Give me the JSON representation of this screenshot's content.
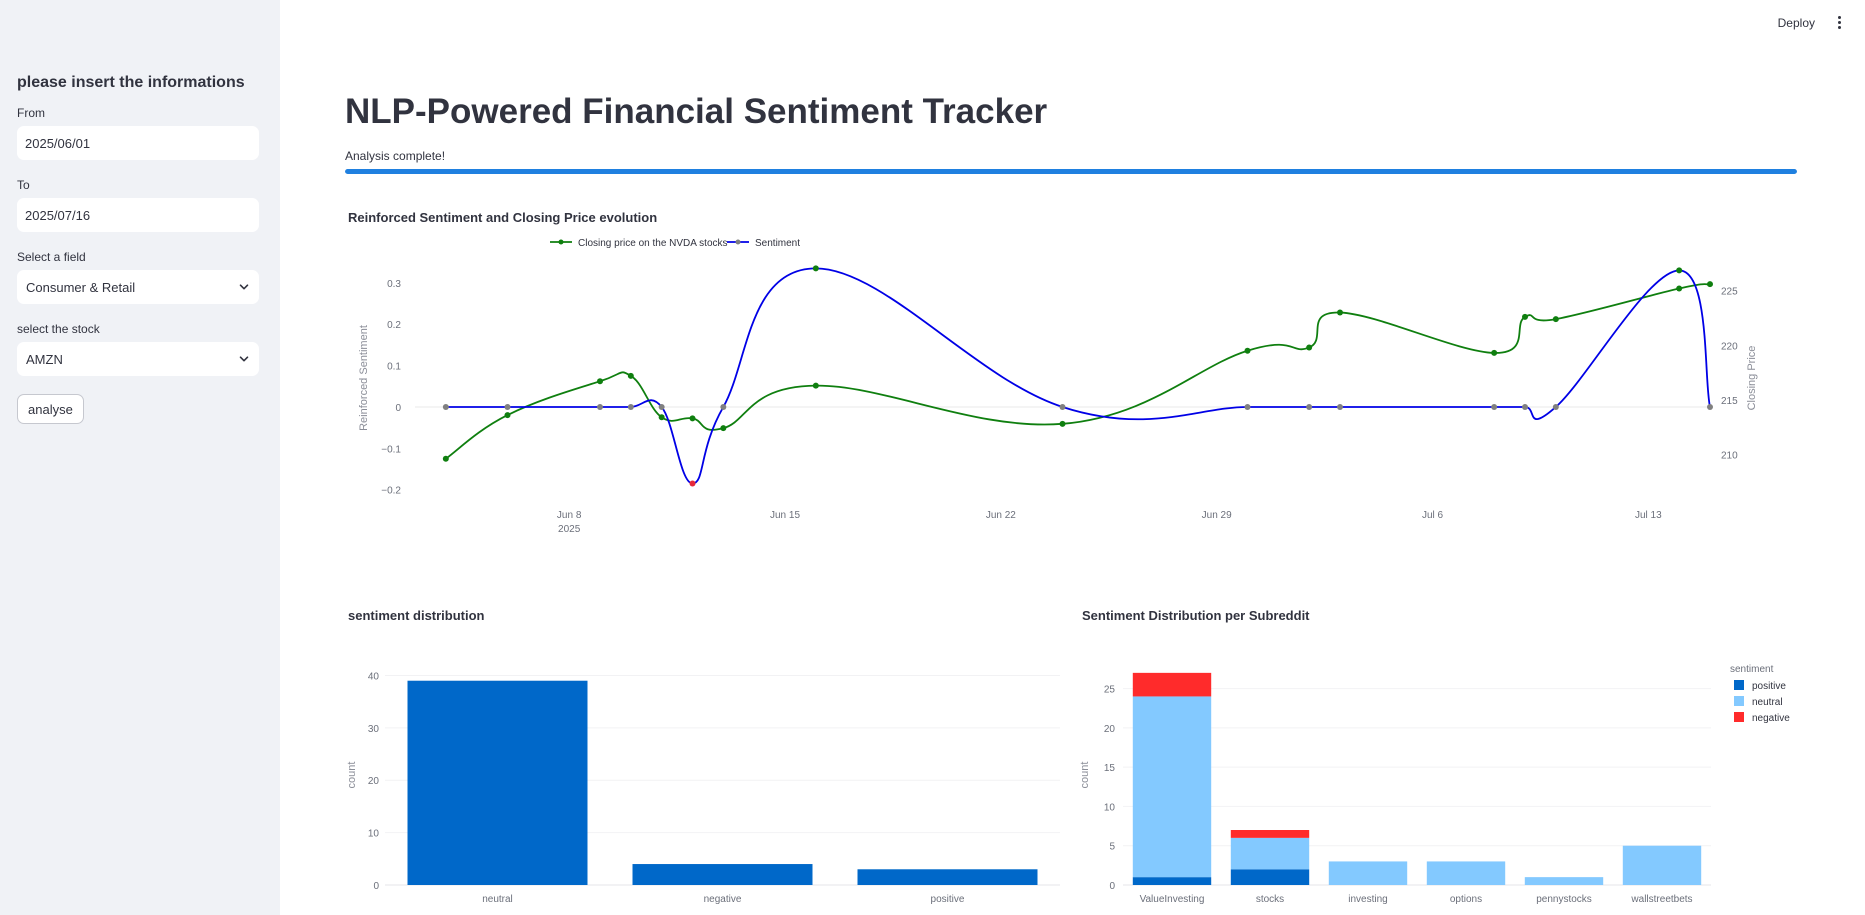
{
  "sidebar": {
    "heading": "please insert the informations",
    "from_label": "From",
    "from_value": "2025/06/01",
    "to_label": "To",
    "to_value": "2025/07/16",
    "field_label": "Select a field",
    "field_value": "Consumer & Retail",
    "stock_label": "select the stock",
    "stock_value": "AMZN",
    "analyse_label": "analyse"
  },
  "header": {
    "deploy_label": "Deploy"
  },
  "main": {
    "title": "NLP-Powered Financial Sentiment Tracker",
    "status": "Analysis complete!",
    "progress": 1.0
  },
  "colors": {
    "closing_price": "#0f7f0f",
    "sentiment": "#0000e6",
    "bar": "#0068c9",
    "positive": "#0068c9",
    "neutral": "#83c9ff",
    "negative": "#ff2b2b",
    "neg_marker": "#e6293a",
    "neutral_marker": "#808080"
  },
  "chart_data": [
    {
      "type": "line",
      "title": "Reinforced Sentiment and Closing Price evolution",
      "ylabel": "Reinforced Sentiment",
      "y2label": "Closing Price",
      "xlim": [
        "2025-06-03",
        "2025-07-15"
      ],
      "ylim": [
        -0.22,
        0.36
      ],
      "y2lim": [
        206,
        228
      ],
      "x_ticks": [
        "Jun 8",
        "Jun 15",
        "Jun 22",
        "Jun 29",
        "Jul 6",
        "Jul 13"
      ],
      "x_tick_dates": [
        "2025-06-08",
        "2025-06-15",
        "2025-06-22",
        "2025-06-29",
        "2025-07-06",
        "2025-07-13"
      ],
      "x_year_label": "2025",
      "y_ticks": [
        -0.2,
        -0.1,
        0,
        0.1,
        0.2,
        0.3
      ],
      "y_tick_labels": [
        "−0.2",
        "−0.1",
        "0",
        "0.1",
        "0.2",
        "0.3"
      ],
      "y2_ticks": [
        210,
        215,
        220,
        225
      ],
      "legend": "top",
      "series": [
        {
          "name": "Closing price on the NVDA stocks",
          "axis": "y2",
          "x": [
            "2025-06-04",
            "2025-06-06",
            "2025-06-09",
            "2025-06-10",
            "2025-06-11",
            "2025-06-12",
            "2025-06-13",
            "2025-06-16",
            "2025-06-24",
            "2025-06-30",
            "2025-07-02",
            "2025-07-03",
            "2025-07-08",
            "2025-07-09",
            "2025-07-10",
            "2025-07-14",
            "2025-07-15"
          ],
          "y": [
            209.6,
            213.6,
            216.7,
            217.2,
            213.4,
            213.3,
            212.4,
            216.3,
            212.8,
            219.5,
            219.8,
            223.0,
            219.3,
            222.6,
            222.4,
            225.2,
            225.6
          ]
        },
        {
          "name": "Sentiment",
          "axis": "y",
          "x": [
            "2025-06-04",
            "2025-06-06",
            "2025-06-09",
            "2025-06-10",
            "2025-06-11",
            "2025-06-12",
            "2025-06-13",
            "2025-06-16",
            "2025-06-24",
            "2025-06-30",
            "2025-07-02",
            "2025-07-03",
            "2025-07-08",
            "2025-07-09",
            "2025-07-10",
            "2025-07-14",
            "2025-07-15"
          ],
          "y": [
            0,
            0,
            0,
            0,
            0,
            -0.185,
            0,
            0.335,
            0,
            0,
            0,
            0,
            0,
            0,
            0,
            0.33,
            0
          ]
        }
      ]
    },
    {
      "type": "bar",
      "title": "sentiment distribution",
      "xlabel": "",
      "ylabel": "count",
      "categories": [
        "neutral",
        "negative",
        "positive"
      ],
      "values": [
        39,
        4,
        3
      ],
      "ylim": [
        0,
        42
      ],
      "y_ticks": [
        0,
        10,
        20,
        30,
        40
      ]
    },
    {
      "type": "bar",
      "stacked": true,
      "title": "Sentiment Distribution per Subreddit",
      "xlabel": "",
      "ylabel": "count",
      "legend_title": "sentiment",
      "legend": "top-right",
      "categories": [
        "ValueInvesting",
        "stocks",
        "investing",
        "options",
        "pennystocks",
        "wallstreetbets"
      ],
      "ylim": [
        0,
        28
      ],
      "y_ticks": [
        0,
        5,
        10,
        15,
        20,
        25
      ],
      "series": [
        {
          "name": "positive",
          "values": [
            1,
            2,
            0,
            0,
            0,
            0
          ]
        },
        {
          "name": "neutral",
          "values": [
            23,
            4,
            3,
            3,
            1,
            5
          ]
        },
        {
          "name": "negative",
          "values": [
            3,
            1,
            0,
            0,
            0,
            0
          ]
        }
      ]
    }
  ]
}
